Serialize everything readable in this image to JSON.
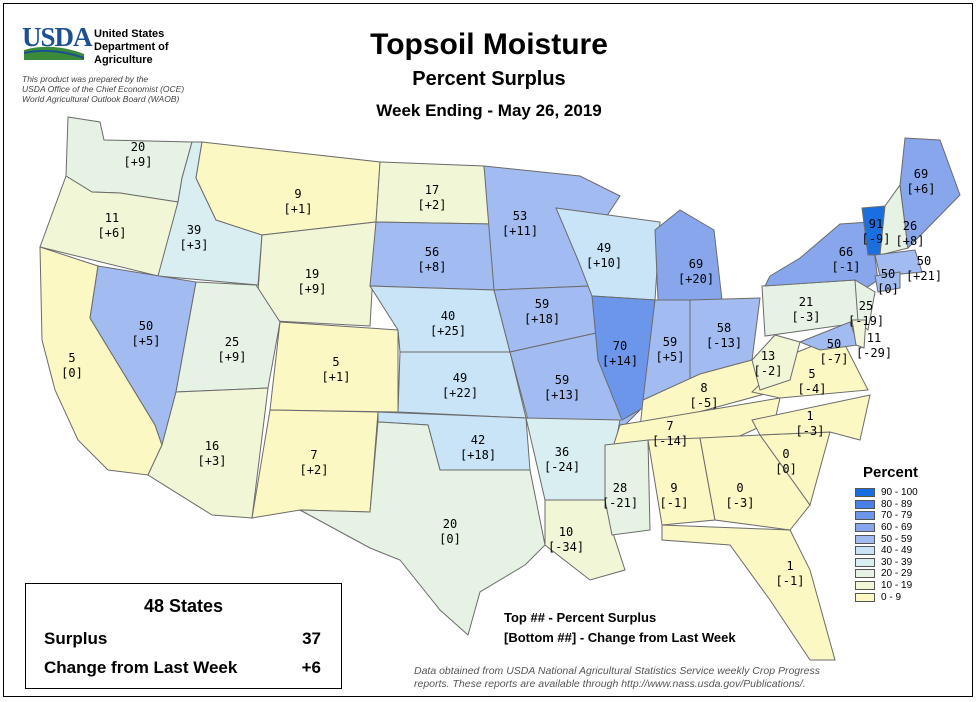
{
  "header": {
    "logo_text": "USDA",
    "agency_lines": [
      "United States",
      "Department of",
      "Agriculture"
    ],
    "prepared_lines": [
      "This product was prepared by the",
      "USDA Office of the Chief Economist (OCE)",
      "World Agricultural Outlook Board (WAOB)"
    ],
    "title": "Topsoil Moisture",
    "subtitle": "Percent Surplus",
    "week": "Week Ending - May 26, 2019"
  },
  "colors": {
    "logo_blue": "#1d4f91",
    "logo_green": "#3a8a3a",
    "state_border": "#6b6b6b"
  },
  "legend": {
    "title": "Percent",
    "bins": [
      {
        "label": "90 - 100",
        "color": "#1a6fe0"
      },
      {
        "label": "80 - 89",
        "color": "#4a7fe8"
      },
      {
        "label": "70 - 79",
        "color": "#6c96ea"
      },
      {
        "label": "60 - 69",
        "color": "#88a6ec"
      },
      {
        "label": "50 - 59",
        "color": "#a2bbf0"
      },
      {
        "label": "40 - 49",
        "color": "#c9e3f7"
      },
      {
        "label": "30 - 39",
        "color": "#d9eef0"
      },
      {
        "label": "20 - 29",
        "color": "#e6f3e4"
      },
      {
        "label": "10 - 19",
        "color": "#f0f6d6"
      },
      {
        "label": "0 - 9",
        "color": "#fcf8c4"
      }
    ]
  },
  "states": [
    {
      "abbr": "WA",
      "surplus": "20",
      "change": "[+9]"
    },
    {
      "abbr": "OR",
      "surplus": "11",
      "change": "[+6]"
    },
    {
      "abbr": "CA",
      "surplus": "5",
      "change": "[0]"
    },
    {
      "abbr": "ID",
      "surplus": "39",
      "change": "[+3]"
    },
    {
      "abbr": "NV",
      "surplus": "50",
      "change": "[+5]"
    },
    {
      "abbr": "MT",
      "surplus": "9",
      "change": "[+1]"
    },
    {
      "abbr": "WY",
      "surplus": "19",
      "change": "[+9]"
    },
    {
      "abbr": "UT",
      "surplus": "25",
      "change": "[+9]"
    },
    {
      "abbr": "AZ",
      "surplus": "16",
      "change": "[+3]"
    },
    {
      "abbr": "CO",
      "surplus": "5",
      "change": "[+1]"
    },
    {
      "abbr": "NM",
      "surplus": "7",
      "change": "[+2]"
    },
    {
      "abbr": "ND",
      "surplus": "17",
      "change": "[+2]"
    },
    {
      "abbr": "SD",
      "surplus": "56",
      "change": "[+8]"
    },
    {
      "abbr": "NE",
      "surplus": "40",
      "change": "[+25]"
    },
    {
      "abbr": "KS",
      "surplus": "49",
      "change": "[+22]"
    },
    {
      "abbr": "OK",
      "surplus": "42",
      "change": "[+18]"
    },
    {
      "abbr": "TX",
      "surplus": "20",
      "change": "[0]"
    },
    {
      "abbr": "MN",
      "surplus": "53",
      "change": "[+11]"
    },
    {
      "abbr": "IA",
      "surplus": "59",
      "change": "[+18]"
    },
    {
      "abbr": "MO",
      "surplus": "59",
      "change": "[+13]"
    },
    {
      "abbr": "AR",
      "surplus": "36",
      "change": "[-24]"
    },
    {
      "abbr": "LA",
      "surplus": "10",
      "change": "[-34]"
    },
    {
      "abbr": "WI",
      "surplus": "49",
      "change": "[+10]"
    },
    {
      "abbr": "IL",
      "surplus": "70",
      "change": "[+14]"
    },
    {
      "abbr": "MI",
      "surplus": "69",
      "change": "[+20]"
    },
    {
      "abbr": "IN",
      "surplus": "59",
      "change": "[+5]"
    },
    {
      "abbr": "OH",
      "surplus": "58",
      "change": "[-13]"
    },
    {
      "abbr": "KY",
      "surplus": "8",
      "change": "[-5]"
    },
    {
      "abbr": "TN",
      "surplus": "7",
      "change": "[-14]"
    },
    {
      "abbr": "MS",
      "surplus": "28",
      "change": "[-21]"
    },
    {
      "abbr": "AL",
      "surplus": "9",
      "change": "[-1]"
    },
    {
      "abbr": "GA",
      "surplus": "0",
      "change": "[-3]"
    },
    {
      "abbr": "FL",
      "surplus": "1",
      "change": "[-1]"
    },
    {
      "abbr": "SC",
      "surplus": "0",
      "change": "[0]"
    },
    {
      "abbr": "NC",
      "surplus": "1",
      "change": "[-3]"
    },
    {
      "abbr": "VA",
      "surplus": "5",
      "change": "[-4]"
    },
    {
      "abbr": "WV",
      "surplus": "13",
      "change": "[-2]"
    },
    {
      "abbr": "PA",
      "surplus": "21",
      "change": "[-3]"
    },
    {
      "abbr": "NY",
      "surplus": "66",
      "change": "[-1]"
    },
    {
      "abbr": "VT",
      "surplus": "91",
      "change": "[-9]"
    },
    {
      "abbr": "NH",
      "surplus": "26",
      "change": "[+8]"
    },
    {
      "abbr": "ME",
      "surplus": "69",
      "change": "[+6]"
    },
    {
      "abbr": "MA",
      "surplus": "50",
      "change": "[+21]"
    },
    {
      "abbr": "CT",
      "surplus": "50",
      "change": "[0]"
    },
    {
      "abbr": "NJ",
      "surplus": "25",
      "change": "[-19]"
    },
    {
      "abbr": "MD",
      "surplus": "50",
      "change": "[-7]"
    },
    {
      "abbr": "DE",
      "surplus": "11",
      "change": "[-29]"
    }
  ],
  "summary": {
    "title": "48 States",
    "surplus_label": "Surplus",
    "surplus_value": "37",
    "change_label": "Change from Last Week",
    "change_value": "+6"
  },
  "key": {
    "line1": "Top ## - Percent Surplus",
    "line2": "[Bottom ##] - Change from Last Week"
  },
  "source": {
    "line1": "Data obtained from USDA National Agricultural Statistics Service weekly Crop Progress",
    "line2": "reports.  These reports are available through http://www.nass.usda.gov/Publications/."
  }
}
